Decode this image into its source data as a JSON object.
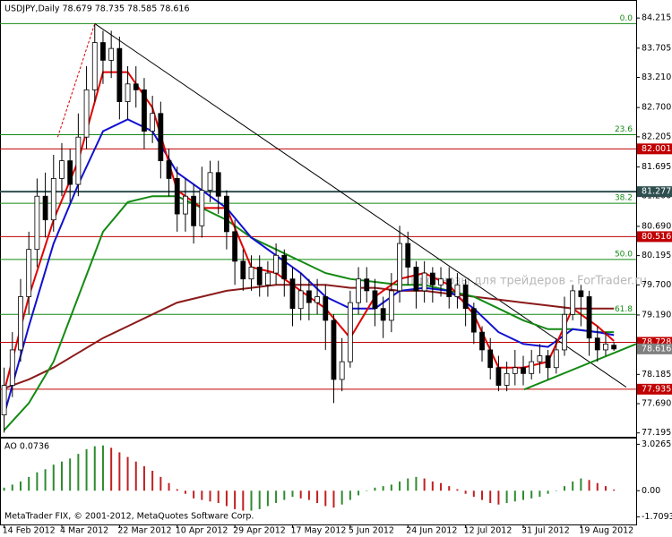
{
  "chart_data": [
    {
      "type": "candlestick",
      "title": "USDJPY,Daily  78.679 78.735 78.585 78.616",
      "watermark": "Прогнозы для трейдеров - ForTrader.ru",
      "footer": "MetaTrader FIX, © 2001-2012, MetaQuotes Software Corp.",
      "xlim": [
        -0.5,
        76.7
      ],
      "xticks": [
        {
          "value": 0,
          "label": "14 Feb 2012"
        },
        {
          "value": 7,
          "label": "4 Mar 2012"
        },
        {
          "value": 14,
          "label": "22 Mar 2012"
        },
        {
          "value": 21,
          "label": "10 Apr 2012"
        },
        {
          "value": 28,
          "label": "29 Apr 2012"
        },
        {
          "value": 35,
          "label": "17 May 2012"
        },
        {
          "value": 42,
          "label": "5 Jun 2012"
        },
        {
          "value": 49,
          "label": "24 Jun 2012"
        },
        {
          "value": 56,
          "label": "12 Jul 2012"
        },
        {
          "value": 63,
          "label": "31 Jul 2012"
        },
        {
          "value": 70,
          "label": "19 Aug 2012"
        }
      ],
      "ylim": [
        77.13,
        84.52
      ],
      "yticks": [
        84.215,
        83.705,
        {
          "value": 83.21,
          "label": "83.210"
        },
        {
          "value": 82.7,
          "label": "82.700"
        },
        82.205,
        81.695,
        {
          "value": 81.2,
          "label": "81.200"
        },
        {
          "value": 80.69,
          "label": "80.690"
        },
        80.195,
        {
          "value": 79.7,
          "label": "79.700"
        },
        {
          "value": 79.19,
          "label": "79.190"
        },
        78.185,
        {
          "value": 77.69,
          "label": "77.690"
        },
        77.195
      ],
      "open": [
        77.5,
        78.0,
        78.6,
        79.5,
        80.3,
        81.2,
        80.8,
        81.5,
        81.8,
        81.4,
        82.2,
        83.0,
        83.8,
        83.5,
        83.7,
        82.8,
        83.1,
        83.0,
        82.3,
        82.6,
        81.8,
        81.5,
        80.9,
        81.2,
        80.7,
        81.3,
        81.6,
        81.2,
        80.6,
        80.1,
        79.8,
        80.0,
        79.7,
        79.9,
        80.2,
        79.8,
        79.3,
        79.6,
        79.4,
        79.5,
        79.1,
        78.1,
        78.4,
        79.4,
        79.8,
        79.6,
        79.3,
        79.1,
        79.6,
        80.4,
        80.0,
        79.6,
        79.9,
        79.7,
        79.8,
        79.5,
        79.7,
        79.3,
        78.9,
        78.6,
        78.3,
        78.0,
        78.2,
        78.3,
        78.2,
        78.4,
        78.5,
        78.3,
        78.6,
        79.2,
        79.6,
        79.5,
        78.8,
        78.6,
        78.679
      ],
      "high": [
        78.3,
        78.9,
        79.8,
        80.6,
        81.5,
        81.6,
        81.9,
        82.1,
        82.0,
        82.6,
        83.4,
        84.1,
        84.0,
        84.0,
        83.9,
        83.4,
        83.4,
        83.2,
        82.9,
        82.8,
        82.0,
        81.7,
        81.5,
        81.4,
        81.7,
        81.8,
        81.8,
        81.3,
        80.8,
        80.3,
        80.2,
        80.2,
        80.1,
        80.4,
        80.3,
        80.0,
        79.9,
        79.8,
        79.8,
        79.7,
        79.2,
        78.8,
        79.6,
        80.0,
        80.0,
        79.8,
        79.5,
        79.9,
        80.7,
        80.6,
        80.1,
        80.1,
        80.0,
        80.0,
        80.0,
        79.9,
        79.8,
        79.4,
        79.0,
        78.8,
        78.5,
        78.4,
        78.6,
        78.5,
        78.6,
        78.7,
        78.6,
        78.8,
        79.5,
        79.7,
        79.7,
        79.6,
        79.0,
        78.9,
        78.735
      ],
      "low": [
        77.2,
        77.8,
        78.4,
        79.2,
        80.0,
        80.5,
        80.6,
        81.2,
        81.1,
        81.2,
        82.0,
        82.8,
        83.1,
        83.2,
        82.5,
        82.5,
        82.7,
        82.0,
        82.1,
        81.5,
        81.2,
        80.6,
        80.6,
        80.4,
        80.5,
        81.1,
        80.9,
        80.3,
        79.7,
        79.6,
        79.6,
        79.5,
        79.5,
        79.7,
        79.5,
        79.0,
        79.1,
        79.1,
        79.2,
        78.6,
        77.7,
        77.9,
        78.3,
        79.2,
        79.4,
        79.0,
        78.8,
        78.9,
        79.4,
        79.7,
        79.3,
        79.4,
        79.4,
        79.5,
        79.3,
        79.3,
        79.0,
        78.7,
        78.4,
        78.1,
        77.9,
        77.9,
        78.0,
        78.0,
        78.1,
        78.2,
        78.1,
        78.2,
        78.5,
        79.1,
        79.0,
        78.5,
        78.4,
        78.5,
        78.585
      ],
      "close": [
        78.0,
        78.6,
        79.5,
        80.3,
        81.2,
        80.8,
        81.5,
        81.8,
        81.4,
        82.2,
        83.0,
        83.8,
        83.5,
        83.7,
        82.8,
        83.1,
        83.0,
        82.3,
        82.6,
        81.8,
        81.5,
        80.9,
        81.2,
        80.7,
        81.3,
        81.6,
        81.2,
        80.6,
        80.1,
        79.8,
        80.0,
        79.7,
        79.9,
        80.2,
        79.8,
        79.3,
        79.6,
        79.4,
        79.5,
        79.1,
        78.1,
        78.4,
        79.4,
        79.8,
        79.6,
        79.3,
        79.1,
        79.6,
        80.4,
        80.0,
        79.6,
        79.9,
        79.7,
        79.8,
        79.5,
        79.7,
        79.3,
        78.9,
        78.6,
        78.3,
        78.0,
        78.2,
        78.3,
        78.2,
        78.4,
        78.5,
        78.3,
        78.6,
        79.2,
        79.6,
        79.5,
        78.8,
        78.6,
        78.7,
        78.616
      ],
      "series": [
        {
          "color": "#8b1a1a",
          "x": [
            0,
            3,
            6,
            9,
            12,
            15,
            18,
            21,
            24,
            27,
            30,
            33,
            36,
            39,
            42,
            45,
            48,
            51,
            54,
            57,
            60,
            63,
            66,
            69,
            72,
            74
          ],
          "values": [
            77.95,
            78.1,
            78.3,
            78.55,
            78.8,
            79.0,
            79.2,
            79.4,
            79.5,
            79.6,
            79.65,
            79.7,
            79.7,
            79.7,
            79.65,
            79.65,
            79.6,
            79.6,
            79.55,
            79.5,
            79.45,
            79.4,
            79.35,
            79.3,
            79.3,
            79.3
          ]
        },
        {
          "color": "#138a13",
          "x": [
            0,
            3,
            6,
            9,
            12,
            15,
            18,
            21,
            24,
            27,
            30,
            33,
            36,
            39,
            42,
            45,
            48,
            51,
            54,
            57,
            60,
            63,
            66,
            69,
            72,
            74
          ],
          "values": [
            77.24,
            77.7,
            78.4,
            79.5,
            80.6,
            81.1,
            81.2,
            81.2,
            81.0,
            80.8,
            80.5,
            80.3,
            80.1,
            79.9,
            79.8,
            79.75,
            79.7,
            79.7,
            79.6,
            79.5,
            79.3,
            79.1,
            78.95,
            78.95,
            78.9,
            78.9
          ]
        },
        {
          "color": "#1010d0",
          "x": [
            0,
            3,
            6,
            9,
            12,
            15,
            18,
            21,
            24,
            27,
            30,
            33,
            36,
            39,
            42,
            45,
            48,
            51,
            54,
            57,
            60,
            63,
            66,
            69,
            72,
            74
          ],
          "values": [
            77.5,
            79.0,
            80.4,
            81.4,
            82.3,
            82.5,
            82.3,
            81.6,
            81.3,
            81.0,
            80.5,
            80.2,
            79.9,
            79.5,
            79.3,
            79.3,
            79.6,
            79.65,
            79.6,
            79.3,
            78.9,
            78.7,
            78.65,
            78.95,
            78.9,
            78.85
          ]
        },
        {
          "color": "#e00000",
          "x": [
            0,
            3,
            6,
            9,
            12,
            15,
            18,
            21,
            24,
            27,
            30,
            33,
            36,
            39,
            42,
            45,
            48,
            51,
            54,
            57,
            60,
            63,
            66,
            69,
            72,
            74
          ],
          "values": [
            77.9,
            79.5,
            80.8,
            81.8,
            83.3,
            83.3,
            82.7,
            81.3,
            81.0,
            81.0,
            80.0,
            79.9,
            79.6,
            79.3,
            78.8,
            79.5,
            79.8,
            79.9,
            79.7,
            79.2,
            78.3,
            78.3,
            78.4,
            79.3,
            79.0,
            78.75
          ]
        }
      ],
      "fibo_color": "#138a13",
      "fibo": [
        {
          "label": "0.0",
          "value": 84.12
        },
        {
          "label": "23.6",
          "value": 82.24
        },
        {
          "label": "38.2",
          "value": 81.08
        },
        {
          "label": "50.0",
          "value": 80.13
        },
        {
          "label": "61.8",
          "value": 79.2
        }
      ],
      "levels": [
        {
          "value": 82.001,
          "color": "#c00000"
        },
        {
          "value": 81.277,
          "color": "#2f4f4f"
        },
        {
          "value": 80.516,
          "color": "#c00000"
        },
        {
          "value": 78.728,
          "color": "#c00000"
        },
        {
          "value": 77.935,
          "color": "#c00000"
        }
      ],
      "last_price_color": "#808080",
      "trendlines": [
        {
          "color": "#000000",
          "dashed": false,
          "points": [
            [
              11,
              84.12
            ],
            [
              75.5,
              77.97
            ]
          ]
        },
        {
          "color": "#138a13",
          "dashed": false,
          "points": [
            [
              63.1,
              77.93
            ],
            [
              76.7,
              78.7
            ]
          ]
        },
        {
          "color": "#e00000",
          "dashed": true,
          "points": [
            [
              6.5,
              82.2
            ],
            [
              11,
              84.12
            ]
          ]
        }
      ]
    },
    {
      "type": "bar",
      "title": "AO 0.0736",
      "ylim": [
        -2.2,
        3.4
      ],
      "yticks": [
        3.0265,
        {
          "value": 0,
          "label": "0.00"
        },
        -1.7093
      ],
      "up_color": "#2e8b2e",
      "down_color": "#c02020",
      "values": [
        0.2,
        0.4,
        0.6,
        0.9,
        1.2,
        1.4,
        1.7,
        1.9,
        2.1,
        2.4,
        2.7,
        2.9,
        2.95,
        2.8,
        2.5,
        2.2,
        1.9,
        1.6,
        1.3,
        0.9,
        0.5,
        0.1,
        -0.2,
        -0.5,
        -0.6,
        -0.7,
        -0.8,
        -1.0,
        -1.2,
        -1.3,
        -1.3,
        -1.2,
        -1.0,
        -0.8,
        -0.6,
        -0.4,
        -0.5,
        -0.6,
        -0.8,
        -1.0,
        -1.1,
        -0.9,
        -0.6,
        -0.3,
        0.0,
        0.2,
        0.3,
        0.4,
        0.6,
        0.8,
        0.9,
        0.8,
        0.6,
        0.5,
        0.3,
        0.1,
        -0.2,
        -0.4,
        -0.6,
        -0.8,
        -0.9,
        -0.8,
        -0.7,
        -0.6,
        -0.5,
        -0.4,
        -0.2,
        0.0,
        0.3,
        0.6,
        0.8,
        0.7,
        0.5,
        0.3,
        0.0736
      ]
    }
  ]
}
